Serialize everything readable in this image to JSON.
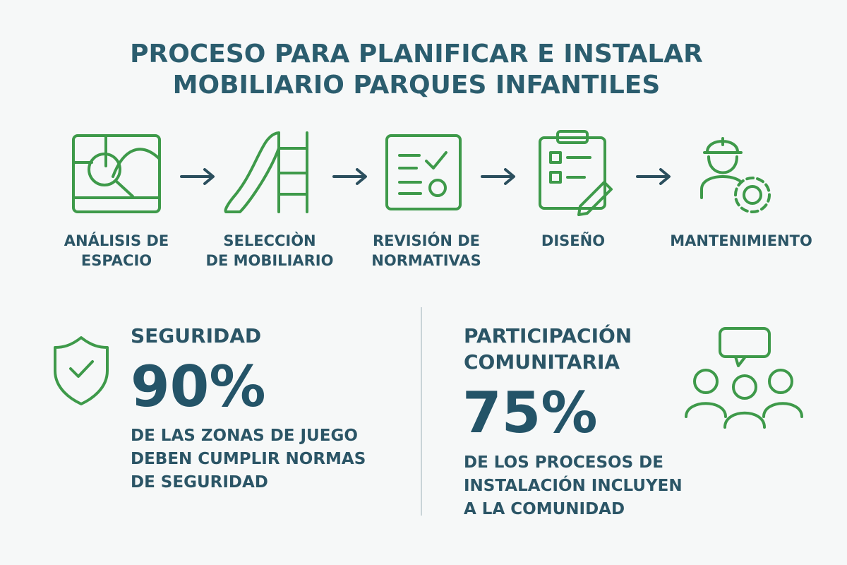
{
  "header": {
    "title": [
      "PROCESO PARA PLANIFICAR E INSTALAR",
      "MOBILIARIO PARQUES INFANTILES"
    ]
  },
  "steps": [
    {
      "label": [
        "ANÁLISIS DE",
        "ESPACIO"
      ]
    },
    {
      "label": [
        "SELECCIÒN",
        "DE MOBILIARIO"
      ]
    },
    {
      "label": [
        "REVISIÓN DE",
        "NORMATIVAS"
      ]
    },
    {
      "label": [
        "DISEÑO"
      ]
    },
    {
      "label": [
        "MANTENIMIENTO"
      ]
    }
  ],
  "stats": [
    {
      "heading": [
        "SEGURIDAD"
      ],
      "value": "90%",
      "description": [
        "DE LAS ZONAS DE JUEGO",
        "DEBEN CUMPLIR NORMAS",
        "DE SEGURIDAD"
      ]
    },
    {
      "heading": [
        "PARTICIPACIÓN",
        "COMUNITARIA"
      ],
      "value": "75%",
      "description": [
        "DE LOS PROCESOS DE",
        "INSTALACIÓN INCLUYEN",
        "A LA COMUNIDAD"
      ]
    }
  ]
}
